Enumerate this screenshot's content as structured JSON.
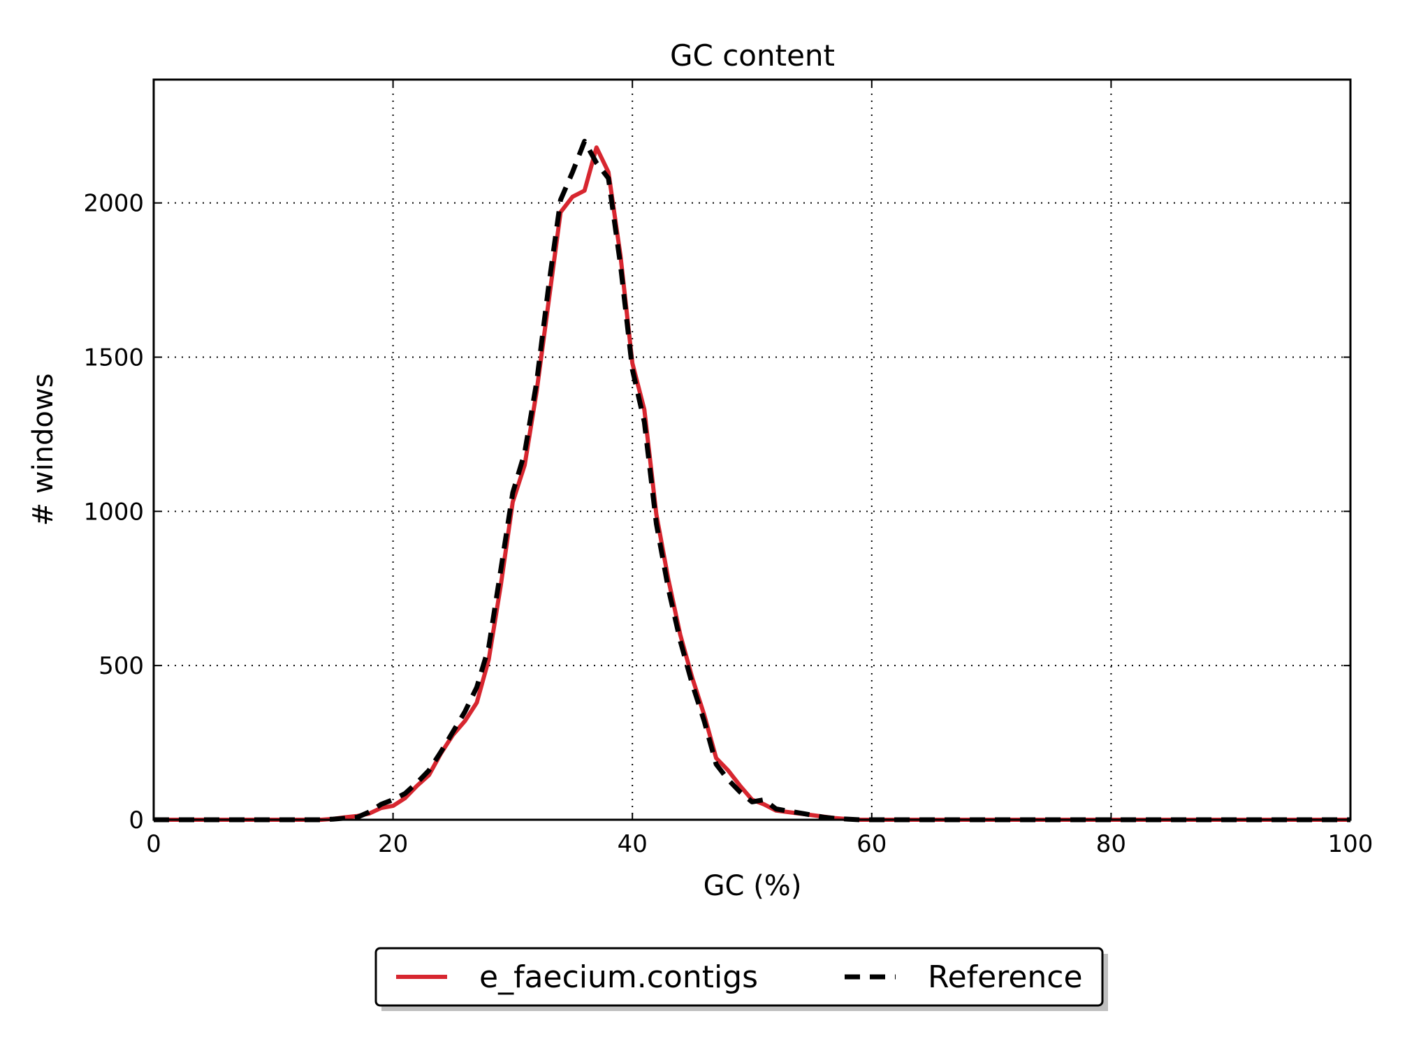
{
  "chart_data": {
    "type": "line",
    "title": "GC content",
    "xlabel": "GC (%)",
    "ylabel": "# windows",
    "xlim": [
      0,
      100
    ],
    "ylim": [
      0,
      2400
    ],
    "xticks": [
      0,
      20,
      40,
      60,
      80,
      100
    ],
    "yticks": [
      0,
      500,
      1000,
      1500,
      2000
    ],
    "grid": true,
    "legend_position": "bottom-center",
    "series": [
      {
        "name": "e_faecium.contigs",
        "color": "#d7262f",
        "style": "solid",
        "x": [
          0,
          2,
          4,
          6,
          8,
          10,
          12,
          14,
          15,
          16,
          17,
          18,
          19,
          20,
          21,
          22,
          23,
          24,
          25,
          26,
          27,
          28,
          29,
          30,
          31,
          32,
          33,
          34,
          35,
          36,
          37,
          38,
          39,
          40,
          41,
          42,
          43,
          44,
          45,
          46,
          47,
          48,
          49,
          50,
          51,
          52,
          53,
          54,
          55,
          56,
          57,
          58,
          59,
          60,
          62,
          64,
          66,
          70,
          80,
          90,
          100
        ],
        "y": [
          0,
          0,
          0,
          0,
          0,
          0,
          0,
          0,
          3,
          8,
          12,
          20,
          38,
          45,
          70,
          110,
          145,
          215,
          275,
          320,
          380,
          520,
          760,
          1030,
          1150,
          1390,
          1680,
          1970,
          2020,
          2040,
          2180,
          2100,
          1830,
          1480,
          1330,
          990,
          780,
          600,
          460,
          340,
          200,
          160,
          110,
          65,
          50,
          30,
          25,
          20,
          15,
          10,
          5,
          2,
          0,
          0,
          0,
          0,
          0,
          0,
          0,
          0,
          0
        ]
      },
      {
        "name": "Reference",
        "color": "#000000",
        "style": "dashed",
        "x": [
          0,
          2,
          4,
          6,
          8,
          10,
          12,
          14,
          15,
          16,
          17,
          18,
          19,
          20,
          21,
          22,
          23,
          24,
          25,
          26,
          27,
          28,
          29,
          30,
          31,
          32,
          33,
          34,
          35,
          36,
          37,
          38,
          39,
          40,
          41,
          42,
          43,
          44,
          45,
          46,
          47,
          48,
          49,
          50,
          51,
          52,
          53,
          54,
          55,
          56,
          57,
          58,
          59,
          60,
          62,
          64,
          66,
          70,
          80,
          90,
          100
        ],
        "y": [
          0,
          0,
          0,
          0,
          0,
          0,
          0,
          0,
          2,
          5,
          8,
          25,
          50,
          65,
          85,
          120,
          160,
          220,
          285,
          350,
          430,
          560,
          810,
          1060,
          1190,
          1420,
          1730,
          2010,
          2100,
          2200,
          2130,
          2080,
          1800,
          1460,
          1290,
          960,
          750,
          580,
          440,
          320,
          180,
          130,
          90,
          58,
          65,
          35,
          28,
          22,
          15,
          8,
          4,
          2,
          0,
          0,
          0,
          0,
          0,
          0,
          0,
          0,
          0
        ]
      }
    ]
  }
}
